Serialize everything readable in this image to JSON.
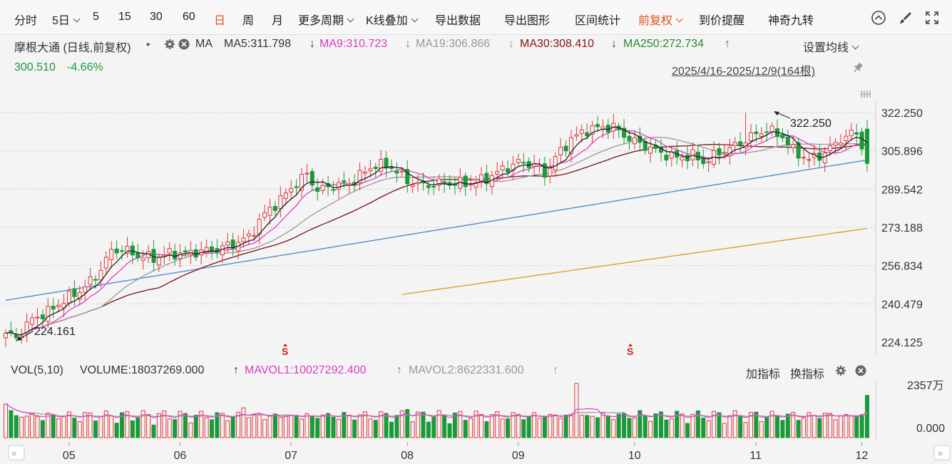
{
  "toolbar": {
    "items": [
      {
        "label": "分时"
      },
      {
        "label": "5日",
        "dropdown": true
      },
      {
        "label": "5"
      },
      {
        "label": "15"
      },
      {
        "label": "30"
      },
      {
        "label": "60"
      },
      {
        "label": "日",
        "active": true
      },
      {
        "label": "周"
      },
      {
        "label": "月"
      },
      {
        "label": "更多周期",
        "dropdown": true
      },
      {
        "label": "K线叠加",
        "dropdown": true
      },
      {
        "label": "导出数据"
      },
      {
        "label": "导出图形"
      },
      {
        "label": "区间统计"
      },
      {
        "label": "前复权",
        "dropdown": true,
        "active": true
      },
      {
        "label": "到价提醒"
      },
      {
        "label": "神奇九转"
      }
    ],
    "icons": [
      "collapse-up-icon",
      "brush-icon",
      "fullscreen-icon"
    ]
  },
  "info": {
    "stock": "摩根大通 (日线,前复权)",
    "ma_label": "MA",
    "ma5": "MA5:311.798",
    "ma9": "MA9:310.723",
    "ma19": "MA19:306.866",
    "ma30": "MA30:308.410",
    "ma250": "MA250:272.734",
    "arrow_down": "↓",
    "arrow_up": "↑",
    "price": "300.510",
    "change": "-4.66%",
    "date_range": "2025/4/16-2025/12/9(164根)",
    "set_ma": "设置均线"
  },
  "price_axis": [
    "322.250",
    "305.896",
    "289.542",
    "273.188",
    "256.834",
    "240.479",
    "224.125"
  ],
  "annotations": {
    "high": "322.250",
    "low": "224.161",
    "s_marker": "S"
  },
  "volume": {
    "title": "VOL(5,10)",
    "volume": "VOLUME:18037269.000",
    "mavol1": "MAVOL1:10027292.400",
    "mavol2": "MAVOL2:8622331.600",
    "arrow_up": "↑",
    "add_indicator": "加指标",
    "switch_indicator": "换指标",
    "axis_top": "2357万",
    "axis_bottom": "0.000"
  },
  "months": [
    "05",
    "06",
    "07",
    "08",
    "09",
    "10",
    "11",
    "12"
  ],
  "colors": {
    "up": "#e0373a",
    "down": "#1a9a3a",
    "ma5": "#222222",
    "ma9": "#e040c8",
    "ma19": "#999999",
    "ma30": "#7a1010",
    "ma120": "#4a86c8",
    "ma250": "#d4a020",
    "accent": "#e0541a"
  },
  "chart_data": {
    "type": "candlestick",
    "range": "2025/4/16-2025/12/9",
    "bars": 164,
    "ylim": [
      224.125,
      322.25
    ],
    "high": 322.25,
    "low": 224.161,
    "last_close": 300.51,
    "change_pct": -4.66,
    "ma_last": {
      "MA5": 311.798,
      "MA9": 310.723,
      "MA19": 306.866,
      "MA30": 308.41,
      "MA250": 272.734
    },
    "close_waypoints": [
      [
        0,
        228
      ],
      [
        2,
        226
      ],
      [
        5,
        234
      ],
      [
        8,
        237
      ],
      [
        11,
        242
      ],
      [
        14,
        246
      ],
      [
        17,
        252
      ],
      [
        20,
        263
      ],
      [
        22,
        264
      ],
      [
        25,
        261
      ],
      [
        28,
        260
      ],
      [
        31,
        262
      ],
      [
        34,
        262
      ],
      [
        37,
        263
      ],
      [
        40,
        264
      ],
      [
        43,
        266
      ],
      [
        46,
        269
      ],
      [
        49,
        279
      ],
      [
        52,
        285
      ],
      [
        54,
        290
      ],
      [
        56,
        294
      ],
      [
        57,
        296
      ],
      [
        59,
        289
      ],
      [
        62,
        291
      ],
      [
        65,
        292
      ],
      [
        68,
        297
      ],
      [
        70,
        300
      ],
      [
        73,
        299
      ],
      [
        76,
        293
      ],
      [
        79,
        291
      ],
      [
        82,
        292
      ],
      [
        85,
        292
      ],
      [
        88,
        292
      ],
      [
        91,
        294
      ],
      [
        94,
        298
      ],
      [
        97,
        301
      ],
      [
        100,
        300
      ],
      [
        102,
        296
      ],
      [
        104,
        303
      ],
      [
        107,
        311
      ],
      [
        110,
        315
      ],
      [
        113,
        316
      ],
      [
        115,
        316
      ],
      [
        118,
        311
      ],
      [
        121,
        308
      ],
      [
        124,
        305
      ],
      [
        127,
        303
      ],
      [
        130,
        304
      ],
      [
        132,
        301
      ],
      [
        135,
        305
      ],
      [
        138,
        308
      ],
      [
        141,
        312
      ],
      [
        144,
        315
      ],
      [
        147,
        312
      ],
      [
        149,
        306
      ],
      [
        152,
        302
      ],
      [
        155,
        305
      ],
      [
        158,
        311
      ],
      [
        161,
        314
      ],
      [
        163,
        301
      ]
    ],
    "volume_max": "2357万"
  }
}
